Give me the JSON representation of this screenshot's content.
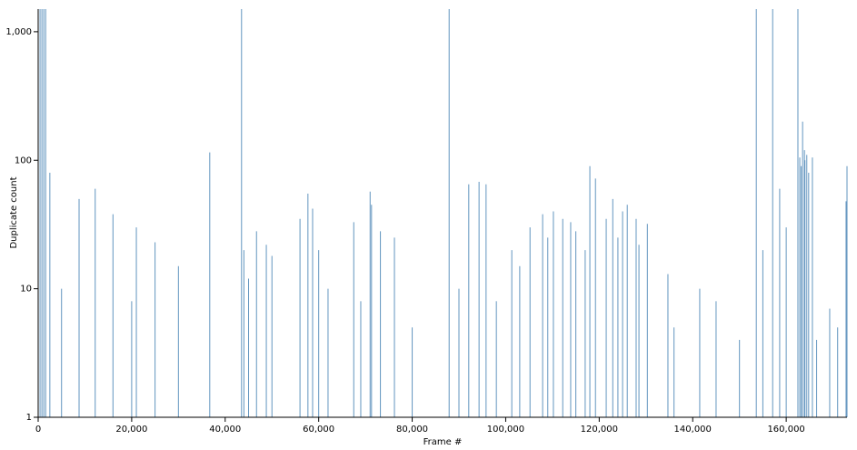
{
  "chart_data": {
    "type": "bar",
    "x_label": "Frame #",
    "y_label": "Duplicate count",
    "log_y": true,
    "color": "#4682b4",
    "xlim": [
      0,
      173000
    ],
    "ylim": [
      1,
      1500
    ],
    "xticks": [
      0,
      {
        "value": 20000,
        "label": "20,000"
      },
      {
        "value": 40000,
        "label": "40,000"
      },
      {
        "value": 60000,
        "label": "60,000"
      },
      {
        "value": 80000,
        "label": "80,000"
      },
      {
        "value": 100000,
        "label": "100,000"
      },
      {
        "value": 120000,
        "label": "120,000"
      },
      {
        "value": 140000,
        "label": "140,000"
      },
      {
        "value": 160000,
        "label": "160,000"
      }
    ],
    "yticks": [
      1,
      10,
      100,
      {
        "value": 1000,
        "label": "1,000"
      }
    ],
    "x": [
      400,
      800,
      1200,
      1600,
      2500,
      5000,
      8750,
      12200,
      16000,
      20000,
      21000,
      25000,
      30000,
      36700,
      43500,
      44000,
      45000,
      46700,
      48800,
      50000,
      56000,
      57700,
      58700,
      60000,
      62000,
      67500,
      69000,
      71000,
      71300,
      73200,
      76200,
      80000,
      87900,
      90000,
      92100,
      94300,
      95800,
      98000,
      101300,
      103000,
      105200,
      107900,
      109000,
      110200,
      112200,
      113900,
      115000,
      117000,
      118000,
      119200,
      121500,
      122900,
      124000,
      125000,
      126000,
      127900,
      128500,
      130300,
      134700,
      136000,
      141500,
      145000,
      150000,
      153600,
      155000,
      157100,
      158600,
      160000,
      162500,
      162900,
      163200,
      163500,
      163900,
      164000,
      164400,
      164800,
      165600,
      166500,
      169300,
      171000,
      172800,
      173000
    ],
    "values": [
      1500,
      1500,
      1500,
      1500,
      80,
      10,
      50,
      60,
      38,
      8,
      30,
      23,
      15,
      115,
      1500,
      20,
      12,
      28,
      22,
      18,
      35,
      55,
      42,
      20,
      10,
      33,
      8,
      57,
      45,
      28,
      25,
      5,
      1500,
      10,
      65,
      68,
      65,
      8,
      20,
      15,
      30,
      38,
      25,
      40,
      35,
      33,
      28,
      20,
      90,
      72,
      35,
      50,
      25,
      40,
      45,
      35,
      22,
      32,
      13,
      5,
      10,
      8,
      4,
      1500,
      20,
      1500,
      60,
      30,
      1500,
      105,
      90,
      200,
      120,
      100,
      110,
      80,
      105,
      4,
      7,
      5,
      48,
      90
    ]
  }
}
